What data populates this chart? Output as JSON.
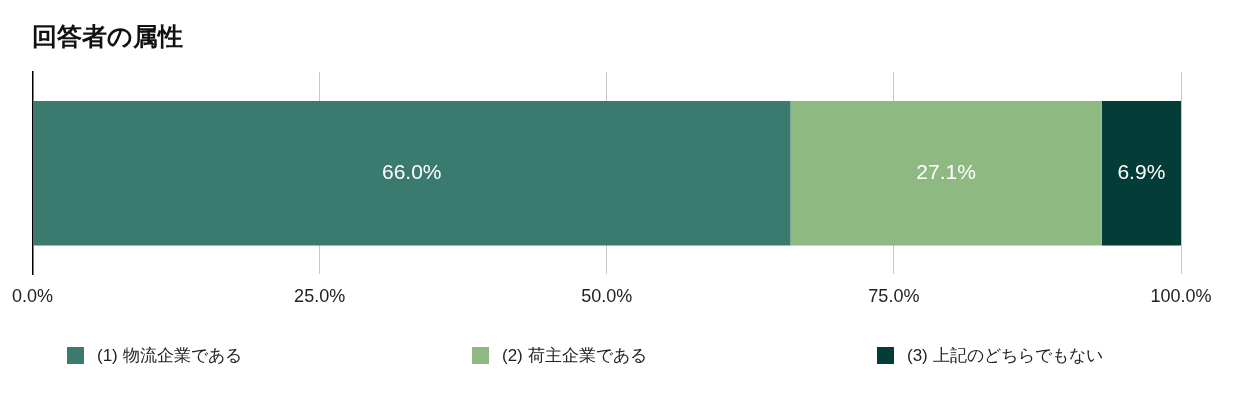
{
  "chart_data": {
    "type": "bar",
    "title": "回答者の属性",
    "orientation": "horizontal",
    "stacked": true,
    "categories": [
      null
    ],
    "series": [
      {
        "name": "(1) 物流企業である",
        "color": "#3a7a6f",
        "values": [
          66.0
        ],
        "value_labels": [
          "66.0%"
        ]
      },
      {
        "name": "(2) 荷主企業である",
        "color": "#8eb982",
        "values": [
          27.1
        ],
        "value_labels": [
          "27.1%"
        ]
      },
      {
        "name": "(3) 上記のどちらでもない",
        "color": "#043d38",
        "values": [
          6.9
        ],
        "value_labels": [
          "6.9%"
        ]
      }
    ],
    "xlim": [
      0,
      100
    ],
    "xticks": [
      {
        "value": 0,
        "label": "0.0%"
      },
      {
        "value": 25,
        "label": "25.0%"
      },
      {
        "value": 50,
        "label": "50.0%"
      },
      {
        "value": 75,
        "label": "75.0%"
      },
      {
        "value": 100,
        "label": "100.0%"
      }
    ],
    "grid": "x",
    "legend": "bottom"
  }
}
